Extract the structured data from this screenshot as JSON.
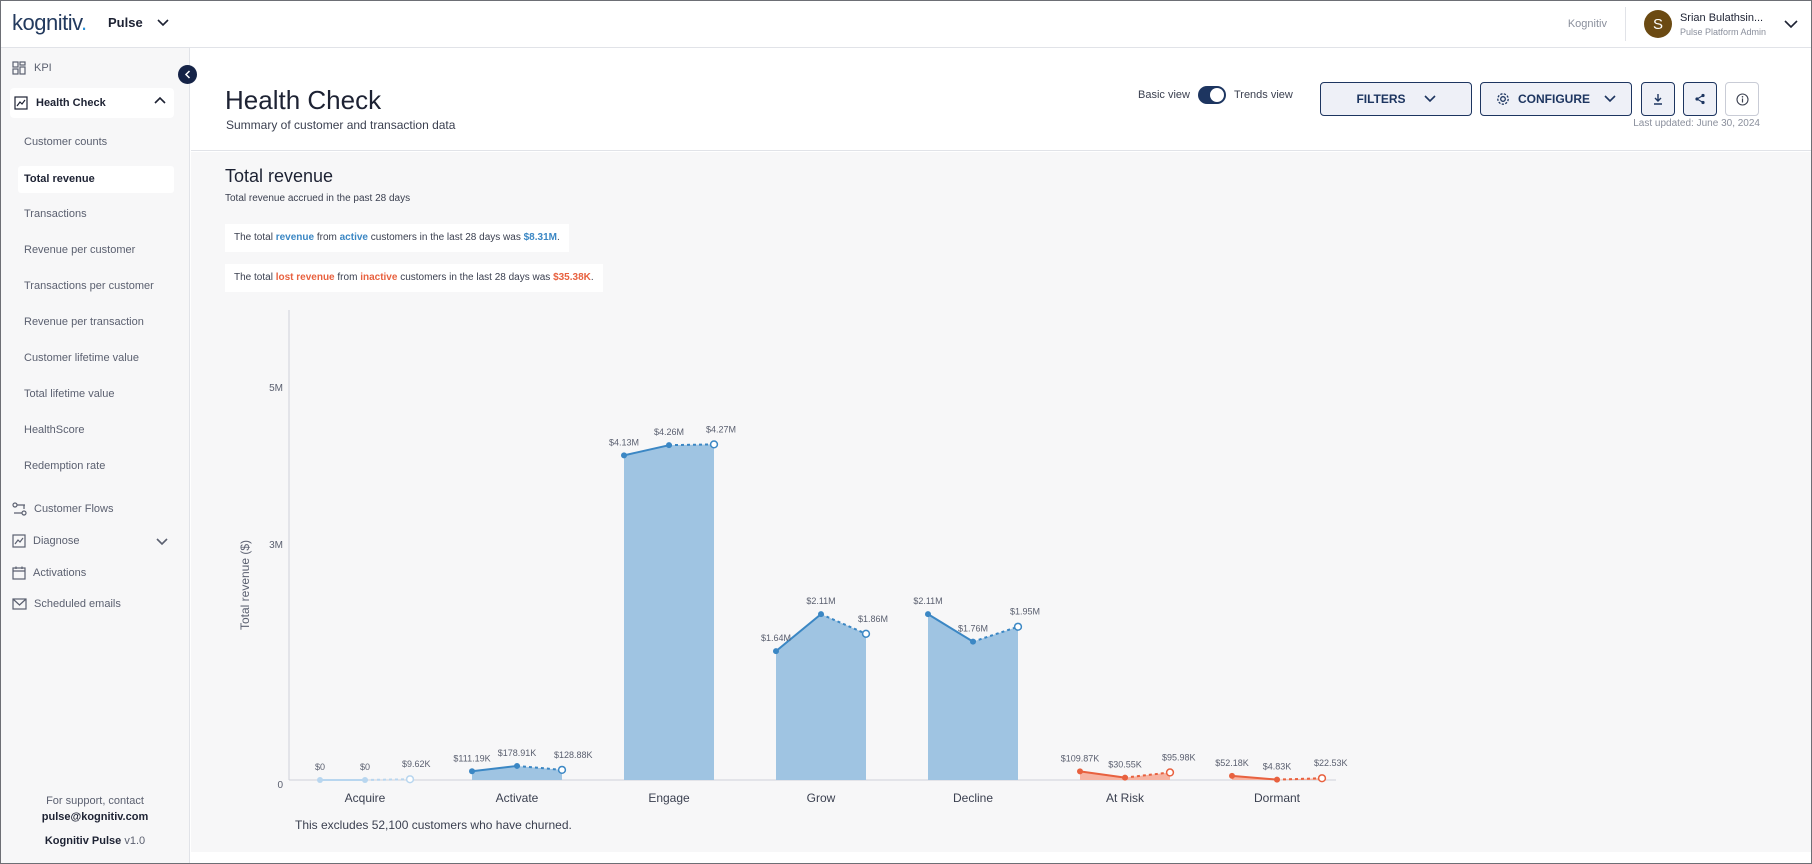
{
  "app": {
    "logo_text": "kognitiv",
    "product": "Pulse",
    "org": "Kognitiv"
  },
  "user": {
    "initial": "S",
    "name": "Srian Bulathsin...",
    "role": "Pulse Platform Admin",
    "avatar_color": "#6b4a12"
  },
  "sidebar": {
    "kpi": "KPI",
    "group": "Health Check",
    "items": [
      {
        "label": "Customer counts"
      },
      {
        "label": "Total revenue"
      },
      {
        "label": "Transactions"
      },
      {
        "label": "Revenue per customer"
      },
      {
        "label": "Transactions per customer"
      },
      {
        "label": "Revenue per transaction"
      },
      {
        "label": "Customer lifetime value"
      },
      {
        "label": "Total lifetime value"
      },
      {
        "label": "HealthScore"
      },
      {
        "label": "Redemption rate"
      }
    ],
    "main_items": [
      {
        "label": "Customer Flows",
        "icon": "flows-icon"
      },
      {
        "label": "Diagnose",
        "icon": "diagnose-icon"
      },
      {
        "label": "Activations",
        "icon": "calendar-icon"
      },
      {
        "label": "Scheduled emails",
        "icon": "mail-icon"
      }
    ],
    "support_text": "For support, contact",
    "support_email": "pulse@kognitiv.com",
    "version_name": "Kognitiv Pulse",
    "version_num": "v1.0"
  },
  "header": {
    "title": "Health Check",
    "subtitle": "Summary of customer and transaction data",
    "basic_view": "Basic view",
    "trends_view": "Trends view",
    "filters_label": "FILTERS",
    "configure_label": "CONFIGURE",
    "last_updated": "Last updated: June 30, 2024"
  },
  "section": {
    "title": "Total revenue",
    "subtitle": "Total revenue accrued in the past 28 days",
    "summary1": {
      "pre": "The total ",
      "k1": "revenue",
      "mid1": " from ",
      "k2": "active",
      "mid2": " customers in the last 28 days was ",
      "val": "$8.31M",
      "end": "."
    },
    "summary2": {
      "pre": "The total ",
      "k1": "lost revenue",
      "mid1": " from ",
      "k2": "inactive",
      "mid2": " customers in the last 28 days was ",
      "val": "$35.38K",
      "end": "."
    },
    "footnote": "This excludes 52,100 customers who have churned."
  },
  "chart_data": {
    "type": "area",
    "ylabel": "Total revenue ($)",
    "yticks": [
      {
        "value": 0,
        "label": "0"
      },
      {
        "value": 3000000,
        "label": "3M"
      },
      {
        "value": 5000000,
        "label": "5M"
      }
    ],
    "ylim": [
      0,
      6000000
    ],
    "categories": [
      {
        "name": "Acquire",
        "kind": "light",
        "points": [
          {
            "value": 0,
            "label": "$0"
          },
          {
            "value": 0,
            "label": "$0"
          },
          {
            "value": 9620,
            "label": "$9.62K"
          }
        ]
      },
      {
        "name": "Activate",
        "kind": "blue",
        "points": [
          {
            "value": 111190,
            "label": "$111.19K"
          },
          {
            "value": 178910,
            "label": "$178.91K"
          },
          {
            "value": 128880,
            "label": "$128.88K"
          }
        ]
      },
      {
        "name": "Engage",
        "kind": "blue",
        "points": [
          {
            "value": 4130000,
            "label": "$4.13M"
          },
          {
            "value": 4260000,
            "label": "$4.26M"
          },
          {
            "value": 4270000,
            "label": "$4.27M"
          }
        ]
      },
      {
        "name": "Grow",
        "kind": "blue",
        "points": [
          {
            "value": 1640000,
            "label": "$1.64M"
          },
          {
            "value": 2110000,
            "label": "$2.11M"
          },
          {
            "value": 1860000,
            "label": "$1.86M"
          }
        ]
      },
      {
        "name": "Decline",
        "kind": "blue",
        "points": [
          {
            "value": 2110000,
            "label": "$2.11M"
          },
          {
            "value": 1760000,
            "label": "$1.76M"
          },
          {
            "value": 1950000,
            "label": "$1.95M"
          }
        ]
      },
      {
        "name": "At Risk",
        "kind": "red",
        "points": [
          {
            "value": 109870,
            "label": "$109.87K"
          },
          {
            "value": 30550,
            "label": "$30.55K"
          },
          {
            "value": 95980,
            "label": "$95.98K"
          }
        ]
      },
      {
        "name": "Dormant",
        "kind": "red",
        "points": [
          {
            "value": 52180,
            "label": "$52.18K"
          },
          {
            "value": 4830,
            "label": "$4.83K"
          },
          {
            "value": 22530,
            "label": "$22.53K"
          }
        ]
      }
    ],
    "colors": {
      "blue_line": "#3b87c4",
      "blue_fill": "#9fc4e2",
      "light_line": "#b8d6ef",
      "red_line": "#e8613f",
      "red_fill": "#f6b4a3"
    },
    "grid": false
  }
}
